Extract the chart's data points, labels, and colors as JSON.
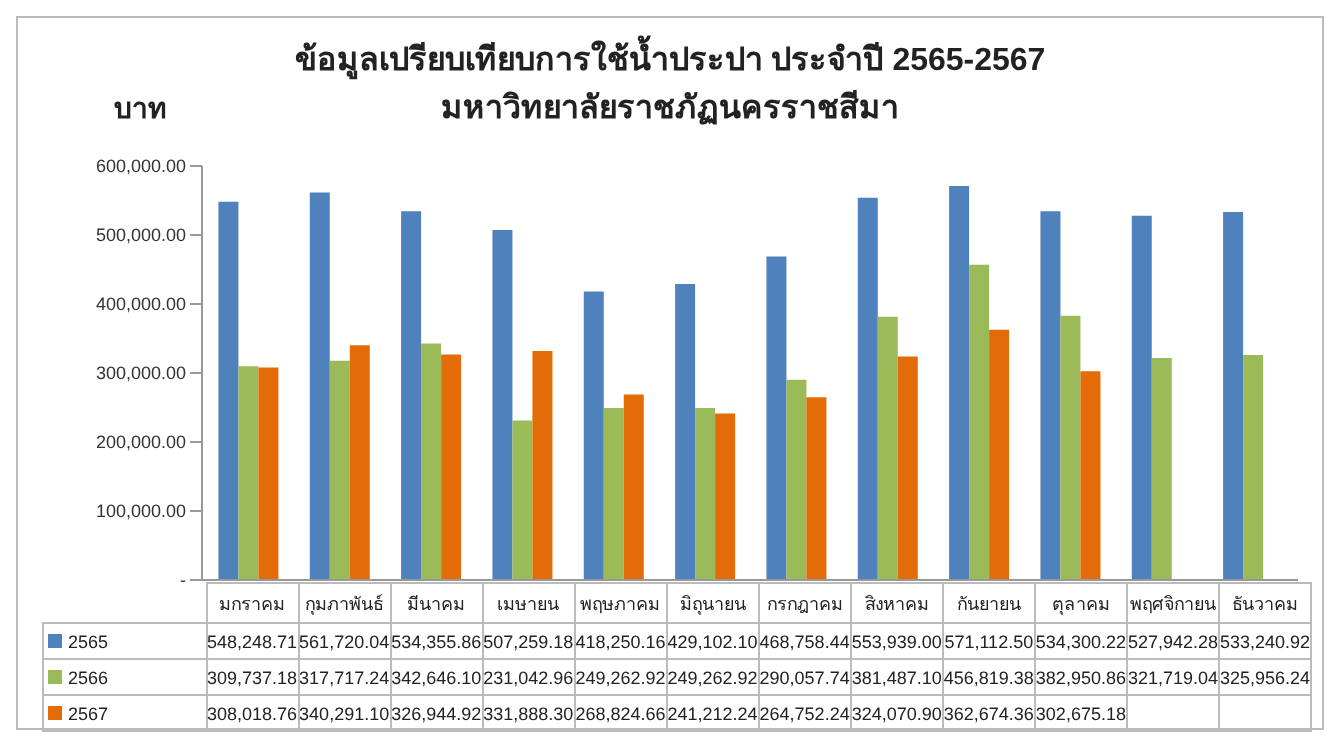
{
  "chart_data": {
    "type": "bar",
    "title": "ข้อมูลเปรียบเทียบการใช้น้ำประปา ประจำปี 2565-2567",
    "subtitle": "มหาวิทยาลัยราชภัฏนครราชสีมา",
    "ylabel": "บาท",
    "categories": [
      "มกราคม",
      "กุมภาพันธ์",
      "มีนาคม",
      "เมษายน",
      "พฤษภาคม",
      "มิถุนายน",
      "กรกฎาคม",
      "สิงหาคม",
      "กันยายน",
      "ตุลาคม",
      "พฤศจิกายน",
      "ธันวาคม"
    ],
    "series": [
      {
        "name": "2565",
        "color": "#4f81bd",
        "values": [
          548248.71,
          561720.04,
          534355.86,
          507259.18,
          418250.16,
          429102.1,
          468758.44,
          553939.0,
          571112.5,
          534300.22,
          527942.28,
          533240.92
        ],
        "value_labels": [
          "548,248.71",
          "561,720.04",
          "534,355.86",
          "507,259.18",
          "418,250.16",
          "429,102.10",
          "468,758.44",
          "553,939.00",
          "571,112.50",
          "534,300.22",
          "527,942.28",
          "533,240.92"
        ]
      },
      {
        "name": "2566",
        "color": "#9bbb59",
        "values": [
          309737.18,
          317717.24,
          342646.1,
          231042.96,
          249262.92,
          249262.92,
          290057.74,
          381487.1,
          456819.38,
          382950.86,
          321719.04,
          325956.24
        ],
        "value_labels": [
          "309,737.18",
          "317,717.24",
          "342,646.10",
          "231,042.96",
          "249,262.92",
          "249,262.92",
          "290,057.74",
          "381,487.10",
          "456,819.38",
          "382,950.86",
          "321,719.04",
          "325,956.24"
        ]
      },
      {
        "name": "2567",
        "color": "#e36c09",
        "values": [
          308018.76,
          340291.1,
          326944.92,
          331888.3,
          268824.66,
          241212.24,
          264752.24,
          324070.9,
          362674.36,
          302675.18,
          null,
          null
        ],
        "value_labels": [
          "308,018.76",
          "340,291.10",
          "326,944.92",
          "331,888.30",
          "268,824.66",
          "241,212.24",
          "264,752.24",
          "324,070.90",
          "362,674.36",
          "302,675.18",
          null,
          null
        ]
      }
    ],
    "ylim": [
      0,
      600000
    ],
    "yticks": [
      {
        "value": 0,
        "label": "-"
      },
      {
        "value": 100000,
        "label": "100,000.00"
      },
      {
        "value": 200000,
        "label": "200,000.00"
      },
      {
        "value": 300000,
        "label": "300,000.00"
      },
      {
        "value": 400000,
        "label": "400,000.00"
      },
      {
        "value": 500000,
        "label": "500,000.00"
      },
      {
        "value": 600000,
        "label": "600,000.00"
      }
    ],
    "legend": "bottom",
    "grid": false
  }
}
